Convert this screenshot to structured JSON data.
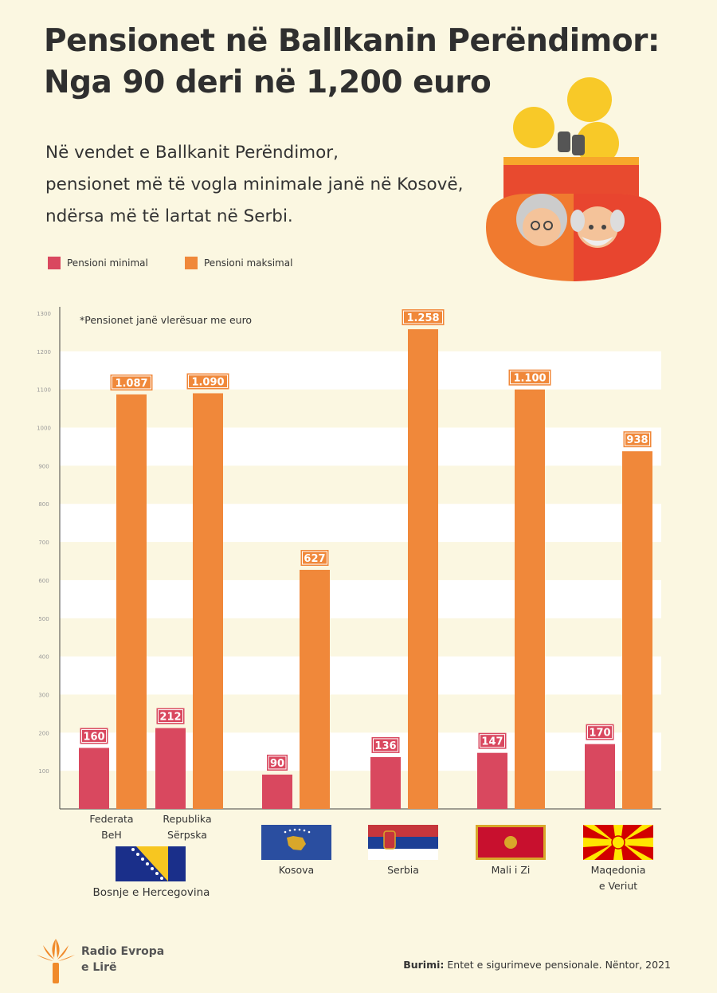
{
  "title_line1": "Pensionet në Ballkanin Perëndimor:",
  "title_line2": "Nga 90 deri në 1,200 euro",
  "subtitle_lines": [
    "Në vendet e Ballkanit Perëndimor,",
    "pensionet më të vogla minimale janë në Kosovë,",
    "ndërsa më të lartat në Serbi."
  ],
  "note": "*Pensionet janë vlerësuar me euro",
  "source_label": "Burimi:",
  "source_text": "Entet e sigurimeve pensionale. Nëntor, 2021",
  "logo": {
    "line1": "Radio Evropa",
    "line2": "e Lirë"
  },
  "colors": {
    "min": "#d9485f",
    "max": "#f0883a",
    "background": "#fbf7e1"
  },
  "chart_data": {
    "type": "bar",
    "ylim": [
      0,
      1300
    ],
    "yticks": [
      100,
      200,
      300,
      400,
      500,
      600,
      700,
      800,
      900,
      1000,
      1100,
      1200,
      1300
    ],
    "grid": true,
    "legend_placement": "top-left",
    "categories": [
      "Federata BeH",
      "Republika Sërpska",
      "Kosova",
      "Serbia",
      "Mali i Zi",
      "Maqedonia e Veriut"
    ],
    "series": [
      {
        "name": "Pensioni minimal",
        "values": [
          160,
          212,
          90,
          136,
          147,
          170
        ],
        "labels": [
          "160",
          "212",
          "90",
          "136",
          "147",
          "170"
        ]
      },
      {
        "name": "Pensioni maksimal",
        "values": [
          1087,
          1090,
          627,
          1258,
          1100,
          938
        ],
        "labels": [
          "1.087",
          "1.090",
          "627",
          "1.258",
          "1.100",
          "938"
        ]
      }
    ],
    "group_label": "Bosnje e Hercegovina",
    "flags": [
      "bosnia-flag-icon",
      "kosovo-flag-icon",
      "serbia-flag-icon",
      "montenegro-flag-icon",
      "north-macedonia-flag-icon"
    ]
  }
}
